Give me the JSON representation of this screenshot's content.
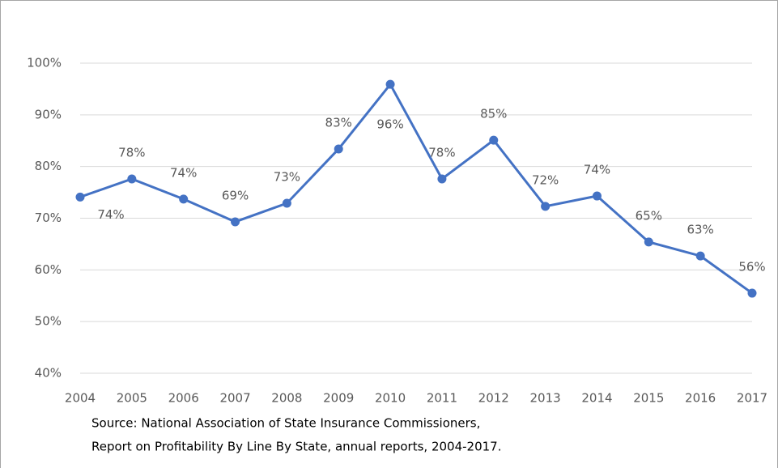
{
  "chart_data": {
    "type": "line",
    "categories": [
      "2004",
      "2005",
      "2006",
      "2007",
      "2008",
      "2009",
      "2010",
      "2011",
      "2012",
      "2013",
      "2014",
      "2015",
      "2016",
      "2017"
    ],
    "series": [
      {
        "color": "#4472c4",
        "values": [
          74.1,
          77.6,
          73.7,
          69.3,
          72.9,
          83.4,
          95.9,
          77.6,
          85.1,
          72.3,
          74.3,
          65.4,
          62.7,
          55.5
        ],
        "value_labels": [
          "74%",
          "78%",
          "74%",
          "69%",
          "73%",
          "83%",
          "96%",
          "78%",
          "85%",
          "72%",
          "74%",
          "65%",
          "63%",
          "56%"
        ]
      }
    ],
    "ylim": [
      40,
      100
    ],
    "yticks": [
      {
        "value": 40,
        "label": "40%"
      },
      {
        "value": 50,
        "label": "50%"
      },
      {
        "value": 60,
        "label": "60%"
      },
      {
        "value": 70,
        "label": "70%"
      },
      {
        "value": 80,
        "label": "80%"
      },
      {
        "value": 90,
        "label": "90%"
      },
      {
        "value": 100,
        "label": "100%"
      }
    ],
    "grid": true,
    "annotations": [
      "Source: National Association of State Insurance Commissioners,",
      "Report on Profitability By Line By State, annual reports, 2004-2017."
    ]
  }
}
